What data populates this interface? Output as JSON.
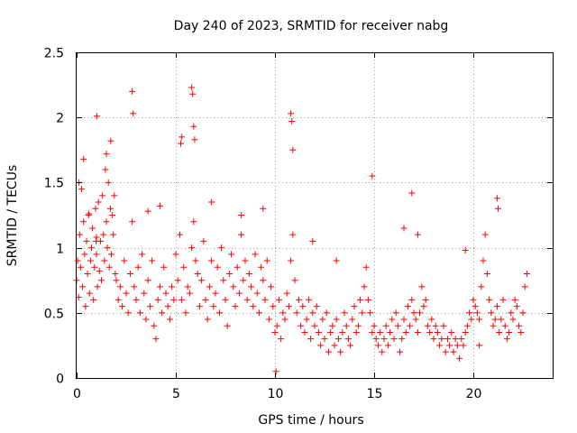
{
  "chart_data": {
    "type": "scatter",
    "title": "Day 240 of 2023, SRMTID for receiver nabg",
    "xlabel": "GPS time / hours",
    "ylabel": "SRMTID / TECUs",
    "xlim": [
      0,
      24
    ],
    "ylim": [
      0,
      2.5
    ],
    "xticks": [
      0,
      5,
      10,
      15,
      20
    ],
    "xtick_labels": [
      "0",
      "5",
      "10",
      "15",
      "20"
    ],
    "yticks": [
      0,
      0.5,
      1,
      1.5,
      2,
      2.5
    ],
    "ytick_labels": [
      "0",
      "0.5",
      "1",
      "1.5",
      "2",
      "2.5"
    ],
    "grid": true,
    "marker": "+",
    "color": "#ff0000",
    "series": [
      {
        "name": "SRMTID",
        "x": [
          0.0,
          0.05,
          0.1,
          0.15,
          0.2,
          0.25,
          0.3,
          0.35,
          0.4,
          0.45,
          0.5,
          0.55,
          0.6,
          0.65,
          0.7,
          0.75,
          0.8,
          0.85,
          0.9,
          0.95,
          1.0,
          1.05,
          1.1,
          1.15,
          1.2,
          1.25,
          1.3,
          1.35,
          1.4,
          1.45,
          1.5,
          1.55,
          1.6,
          1.65,
          1.7,
          1.75,
          1.8,
          1.85,
          1.9,
          1.95,
          2.0,
          2.1,
          2.2,
          2.3,
          2.4,
          2.5,
          2.6,
          2.7,
          2.8,
          2.9,
          3.0,
          3.1,
          3.2,
          3.3,
          3.4,
          3.5,
          3.6,
          3.7,
          3.8,
          3.9,
          4.0,
          4.1,
          4.2,
          4.3,
          4.4,
          4.5,
          4.6,
          4.7,
          4.8,
          4.9,
          5.0,
          5.1,
          5.2,
          5.3,
          5.4,
          5.5,
          5.6,
          5.7,
          5.8,
          5.9,
          6.0,
          6.1,
          6.2,
          6.3,
          6.4,
          6.5,
          6.6,
          6.7,
          6.8,
          6.9,
          7.0,
          7.1,
          7.2,
          7.3,
          7.4,
          7.5,
          7.6,
          7.7,
          7.8,
          7.9,
          8.0,
          8.1,
          8.2,
          8.3,
          8.4,
          8.5,
          8.6,
          8.7,
          8.8,
          8.9,
          9.0,
          9.1,
          9.2,
          9.3,
          9.4,
          9.5,
          9.6,
          9.7,
          9.8,
          9.9,
          10.0,
          10.1,
          10.2,
          10.3,
          10.4,
          10.5,
          10.6,
          10.7,
          10.8,
          10.9,
          11.0,
          11.1,
          11.2,
          11.3,
          11.4,
          11.5,
          11.6,
          11.7,
          11.8,
          11.9,
          12.0,
          12.1,
          12.2,
          12.3,
          12.4,
          12.5,
          12.6,
          12.7,
          12.8,
          12.9,
          13.0,
          13.1,
          13.2,
          13.3,
          13.4,
          13.5,
          13.6,
          13.7,
          13.8,
          13.9,
          14.0,
          14.1,
          14.2,
          14.3,
          14.4,
          14.5,
          14.6,
          14.7,
          14.8,
          14.9,
          15.0,
          15.1,
          15.2,
          15.3,
          15.4,
          15.5,
          15.6,
          15.7,
          15.8,
          15.9,
          16.0,
          16.1,
          16.2,
          16.3,
          16.4,
          16.5,
          16.6,
          16.7,
          16.8,
          16.9,
          17.0,
          17.1,
          17.2,
          17.3,
          17.4,
          17.5,
          17.6,
          17.7,
          17.8,
          17.9,
          18.0,
          18.1,
          18.2,
          18.3,
          18.4,
          18.5,
          18.6,
          18.7,
          18.8,
          18.9,
          19.0,
          19.1,
          19.2,
          19.3,
          19.4,
          19.5,
          19.6,
          19.7,
          19.8,
          19.9,
          20.0,
          20.1,
          20.2,
          20.3,
          20.4,
          20.5,
          20.6,
          20.7,
          20.8,
          20.9,
          21.0,
          21.1,
          21.2,
          21.3,
          21.4,
          21.5,
          21.6,
          21.7,
          21.8,
          21.9,
          22.0,
          22.1,
          22.2,
          22.3,
          22.4,
          22.5,
          22.6,
          22.7,
          0.12,
          0.35,
          0.62,
          0.98,
          1.02,
          1.5,
          1.72,
          2.8,
          2.85,
          5.8,
          5.85,
          5.9,
          5.95,
          5.25,
          5.3,
          10.8,
          10.85,
          10.9,
          14.9,
          16.9,
          21.2,
          21.25,
          10.05,
          1.0,
          3.6,
          4.2,
          6.8,
          8.3,
          9.4,
          11.9,
          13.1,
          16.5,
          17.2,
          19.6,
          20.3
        ],
        "y": [
          0.75,
          0.9,
          0.62,
          1.1,
          0.85,
          1.45,
          0.7,
          1.2,
          0.95,
          0.55,
          1.05,
          0.8,
          1.25,
          0.65,
          0.9,
          1.0,
          1.15,
          0.6,
          0.85,
          1.3,
          0.95,
          0.7,
          1.35,
          0.82,
          1.05,
          0.75,
          1.4,
          1.1,
          0.9,
          1.6,
          1.2,
          1.0,
          1.5,
          0.85,
          1.3,
          0.95,
          1.25,
          1.1,
          1.4,
          0.8,
          0.75,
          0.6,
          0.7,
          0.55,
          0.9,
          0.65,
          0.5,
          0.8,
          1.2,
          0.7,
          0.6,
          0.85,
          0.5,
          0.95,
          0.65,
          0.45,
          0.75,
          0.55,
          0.9,
          0.4,
          0.3,
          0.6,
          0.7,
          0.5,
          0.85,
          0.65,
          0.55,
          0.45,
          0.7,
          0.6,
          0.95,
          0.75,
          1.1,
          0.6,
          0.85,
          0.5,
          0.7,
          0.65,
          1.0,
          1.2,
          0.9,
          0.8,
          0.55,
          0.75,
          1.05,
          0.6,
          0.45,
          0.7,
          0.9,
          0.55,
          0.65,
          0.85,
          0.5,
          1.0,
          0.75,
          0.6,
          0.4,
          0.8,
          0.95,
          0.7,
          0.55,
          0.85,
          0.65,
          1.1,
          0.75,
          0.9,
          0.6,
          0.8,
          0.7,
          0.55,
          0.95,
          0.65,
          0.5,
          0.85,
          0.75,
          0.6,
          0.9,
          0.45,
          0.7,
          0.55,
          0.35,
          0.4,
          0.6,
          0.3,
          0.5,
          0.45,
          0.65,
          0.55,
          0.9,
          1.1,
          0.75,
          0.5,
          0.6,
          0.4,
          0.55,
          0.35,
          0.45,
          0.6,
          0.3,
          0.5,
          0.4,
          0.55,
          0.35,
          0.25,
          0.45,
          0.3,
          0.5,
          0.2,
          0.35,
          0.4,
          0.25,
          0.45,
          0.3,
          0.2,
          0.35,
          0.5,
          0.4,
          0.3,
          0.25,
          0.45,
          0.55,
          0.35,
          0.4,
          0.6,
          0.5,
          0.7,
          0.85,
          0.6,
          0.5,
          0.35,
          0.4,
          0.3,
          0.25,
          0.35,
          0.2,
          0.3,
          0.4,
          0.25,
          0.35,
          0.45,
          0.3,
          0.5,
          0.4,
          0.2,
          0.3,
          0.45,
          0.35,
          0.55,
          0.4,
          0.6,
          0.5,
          0.45,
          0.35,
          0.5,
          0.7,
          0.55,
          0.6,
          0.4,
          0.35,
          0.45,
          0.3,
          0.4,
          0.35,
          0.25,
          0.3,
          0.4,
          0.2,
          0.3,
          0.25,
          0.35,
          0.2,
          0.3,
          0.25,
          0.15,
          0.3,
          0.25,
          0.35,
          0.4,
          0.5,
          0.45,
          0.6,
          0.55,
          0.5,
          0.45,
          0.7,
          0.9,
          1.1,
          0.8,
          0.6,
          0.5,
          0.4,
          0.45,
          0.55,
          0.35,
          0.45,
          0.6,
          0.4,
          0.3,
          0.35,
          0.5,
          0.45,
          0.6,
          0.55,
          0.4,
          0.35,
          0.5,
          0.7,
          0.8,
          1.5,
          1.68,
          1.26,
          1.05,
          2.01,
          1.72,
          1.82,
          2.2,
          2.03,
          2.23,
          2.18,
          1.93,
          1.83,
          1.8,
          1.85,
          2.03,
          1.97,
          1.75,
          1.55,
          1.42,
          1.38,
          1.3,
          0.05,
          1.08,
          1.28,
          1.32,
          1.35,
          1.25,
          1.3,
          1.05,
          0.9,
          1.15,
          1.1,
          0.98,
          0.25
        ],
        "display": "+"
      }
    ]
  }
}
